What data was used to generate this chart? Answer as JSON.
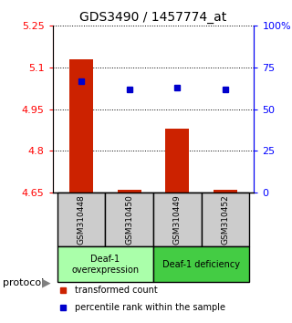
{
  "title": "GDS3490 / 1457774_at",
  "samples": [
    "GSM310448",
    "GSM310450",
    "GSM310449",
    "GSM310452"
  ],
  "red_values": [
    5.13,
    4.66,
    4.88,
    4.66
  ],
  "blue_values_pct": [
    67,
    62,
    63,
    62
  ],
  "ylim": [
    4.65,
    5.25
  ],
  "yticks_left": [
    4.65,
    4.8,
    4.95,
    5.1,
    5.25
  ],
  "yticks_right_pct": [
    0,
    25,
    50,
    75,
    100
  ],
  "red_color": "#CC2200",
  "blue_color": "#0000CC",
  "bar_width": 0.5,
  "group1_label": "Deaf-1\noverexpression",
  "group2_label": "Deaf-1 deficiency",
  "group1_color": "#AAFFAA",
  "group2_color": "#44CC44",
  "sample_box_color": "#CCCCCC",
  "legend_red": "transformed count",
  "legend_blue": "percentile rank within the sample",
  "protocol_label": "protocol"
}
